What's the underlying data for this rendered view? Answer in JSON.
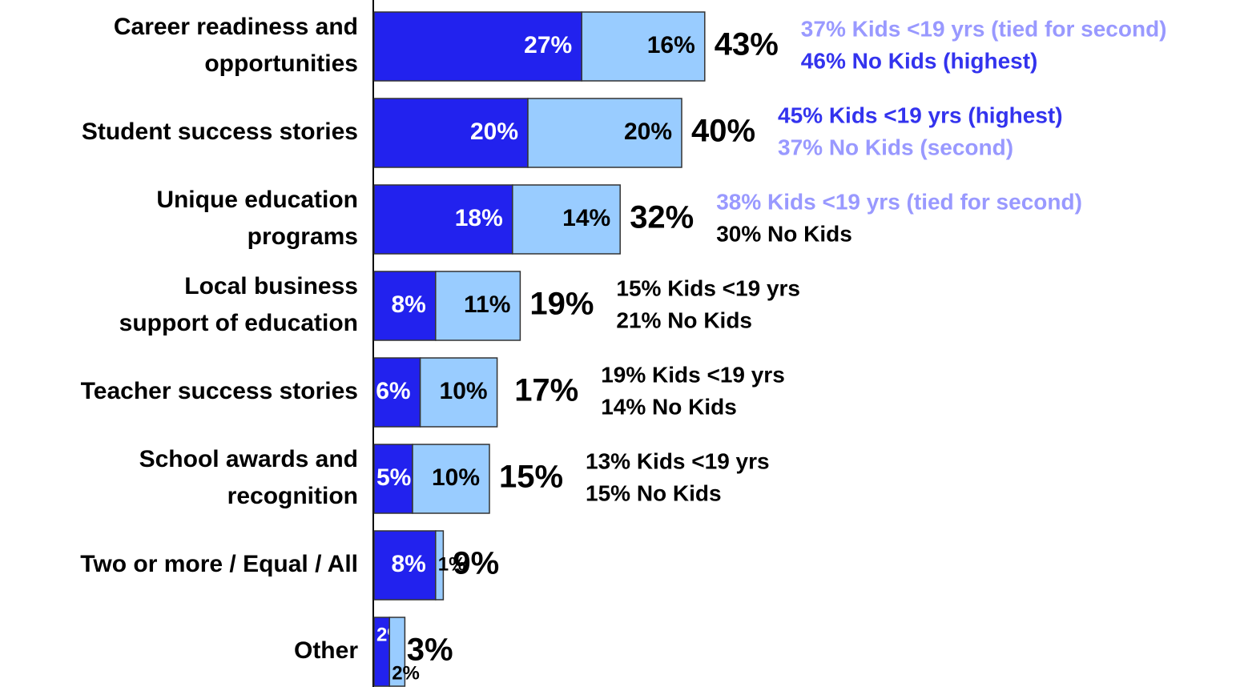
{
  "chart_data": {
    "type": "stacked-bar-horizontal",
    "categories": [
      [
        "Career readiness and",
        "opportunities"
      ],
      [
        "Student success stories"
      ],
      [
        "Unique education",
        "programs"
      ],
      [
        "Local business",
        "support of education"
      ],
      [
        "Teacher success stories"
      ],
      [
        "School awards and",
        "recognition"
      ],
      [
        "Two or more / Equal / All"
      ],
      [
        "Other"
      ]
    ],
    "series": [
      {
        "color": "#2222ee",
        "label_color": "#ffffff",
        "values": [
          27,
          20,
          18,
          8,
          6,
          5,
          8,
          2
        ],
        "value_labels": [
          "27%",
          "20%",
          "18%",
          "8%",
          "6%",
          "5%",
          "8%",
          "2%"
        ]
      },
      {
        "color": "#99ccff",
        "label_color": "#000000",
        "values": [
          16,
          20,
          14,
          11,
          10,
          10,
          1,
          2
        ],
        "value_labels": [
          "16%",
          "20%",
          "14%",
          "11%",
          "10%",
          "10%",
          "1%",
          "2%"
        ]
      }
    ],
    "totals": [
      43,
      40,
      32,
      19,
      17,
      15,
      9,
      3
    ],
    "total_labels": [
      "43%",
      "40%",
      "32%",
      "19%",
      "17%",
      "15%",
      "9%",
      "3%"
    ],
    "annotations": [
      [
        {
          "text": "37% Kids <19 yrs (tied for second)",
          "color": "#9999ff"
        },
        {
          "text": "46% No Kids (highest)",
          "color": "#3333ee"
        }
      ],
      [
        {
          "text": "45% Kids <19 yrs (highest)",
          "color": "#3333ee"
        },
        {
          "text": "37% No Kids (second)",
          "color": "#9999ff"
        }
      ],
      [
        {
          "text": "38% Kids <19 yrs (tied for second)",
          "color": "#9999ff"
        },
        {
          "text": "30% No Kids",
          "color": "#000000"
        }
      ],
      [
        {
          "text": "15% Kids <19 yrs",
          "color": "#000000"
        },
        {
          "text": "21% No Kids",
          "color": "#000000"
        }
      ],
      [
        {
          "text": "19% Kids <19 yrs",
          "color": "#000000"
        },
        {
          "text": "14% No Kids",
          "color": "#000000"
        }
      ],
      [
        {
          "text": "13% Kids <19 yrs",
          "color": "#000000"
        },
        {
          "text": "15% No Kids",
          "color": "#000000"
        }
      ],
      [],
      []
    ]
  }
}
